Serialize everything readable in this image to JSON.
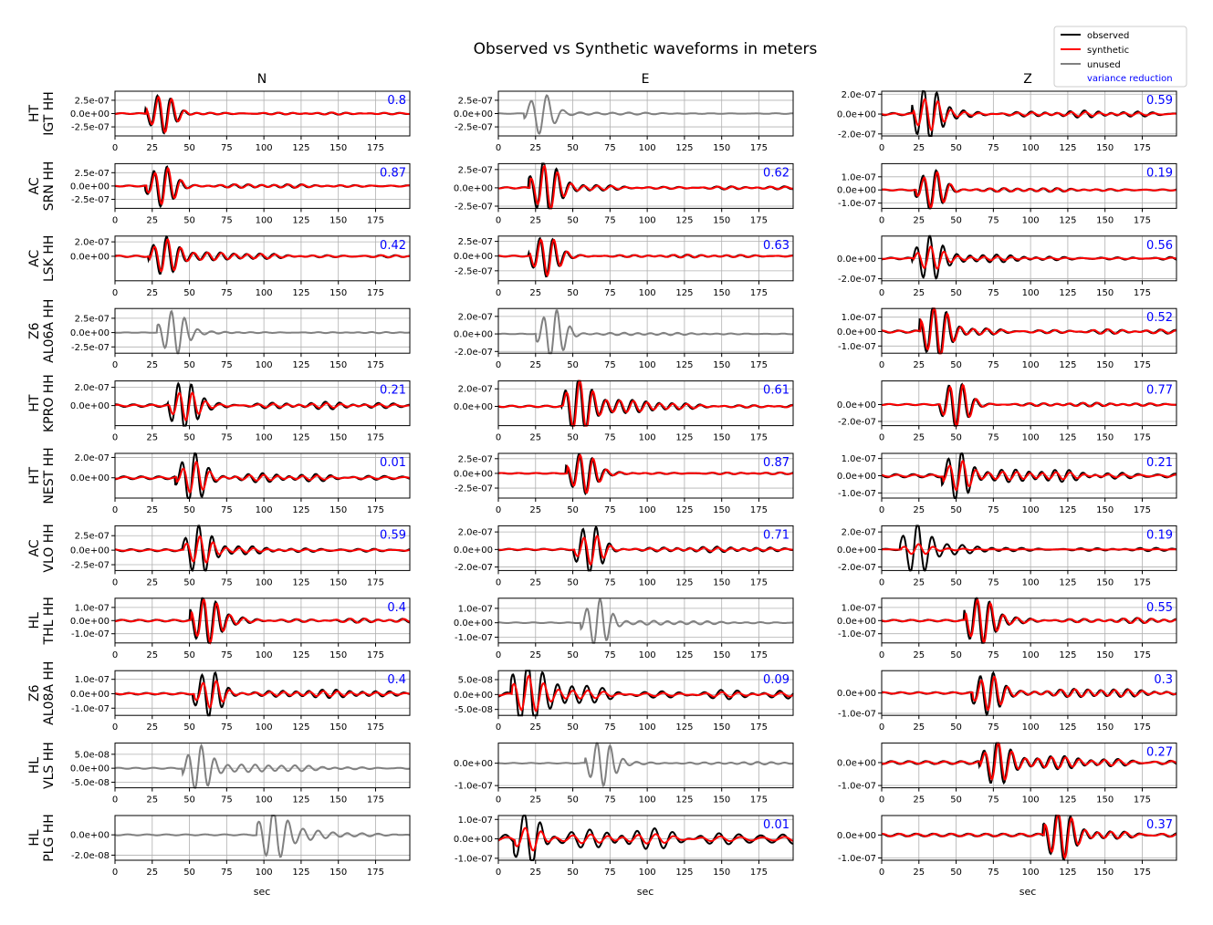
{
  "chart_data": {
    "type": "line",
    "title": "Observed vs Synthetic waveforms in meters",
    "columns": [
      "N",
      "E",
      "Z"
    ],
    "xlabel": "sec",
    "xlim": [
      0,
      198
    ],
    "xticks": [
      0,
      25,
      50,
      75,
      100,
      125,
      150,
      175
    ],
    "grid": true,
    "legend": {
      "placement": "top-right",
      "entries": [
        "observed",
        "synthetic",
        "unused",
        "variance reduction"
      ]
    },
    "colors": {
      "observed": "#000000",
      "synthetic": "#ff0000",
      "unused": "#808080",
      "variance_reduction": "#0000ff"
    },
    "stations": [
      {
        "network": "HT",
        "name": "IGT HH"
      },
      {
        "network": "AC",
        "name": "SRN HH"
      },
      {
        "network": "AC",
        "name": "LSK HH"
      },
      {
        "network": "Z6",
        "name": "AL06A HH"
      },
      {
        "network": "HT",
        "name": "KPRO HH"
      },
      {
        "network": "HT",
        "name": "NEST HH"
      },
      {
        "network": "AC",
        "name": "VLO HH"
      },
      {
        "network": "HL",
        "name": "THL HH"
      },
      {
        "network": "Z6",
        "name": "AL08A HH"
      },
      {
        "network": "HL",
        "name": "VLS HH"
      },
      {
        "network": "HL",
        "name": "PLG HH"
      }
    ],
    "panels": [
      [
        {
          "row": 0,
          "col": "N",
          "used": true,
          "vr": "0.8",
          "ylim": [
            -4.2e-07,
            4.2e-07
          ],
          "yticks": [
            2.5e-07,
            0,
            -2.5e-07
          ],
          "ytick_labels": [
            "2.5e-07",
            "0.0e+00",
            "-2.5e-07"
          ],
          "onset": 20,
          "peak": 3.3e-07,
          "syn_ratio": 0.95,
          "period": 9,
          "noise": 0.05,
          "coda": 0.15
        },
        {
          "row": 0,
          "col": "E",
          "used": false,
          "vr": "",
          "ylim": [
            -4.2e-07,
            4.2e-07
          ],
          "yticks": [
            2.5e-07,
            0,
            -2.5e-07
          ],
          "ytick_labels": [
            "2.5e-07",
            "0.0e+00",
            "-2.5e-07"
          ],
          "onset": 17,
          "peak": 3.8e-07,
          "syn_ratio": 0,
          "period": 11,
          "noise": 0.02,
          "coda": 0.1
        },
        {
          "row": 0,
          "col": "Z",
          "used": true,
          "vr": "0.59",
          "ylim": [
            -2.2e-07,
            2.3e-07
          ],
          "yticks": [
            2e-07,
            0,
            -2e-07
          ],
          "ytick_labels": [
            "2.0e-07",
            "0.0e+00",
            "-2.0e-07"
          ],
          "onset": 20,
          "peak": 2.2e-07,
          "syn_ratio": 0.6,
          "period": 9,
          "noise": 0.1,
          "coda": 0.45
        }
      ],
      [
        {
          "row": 1,
          "col": "N",
          "used": true,
          "vr": "0.87",
          "ylim": [
            -4.2e-07,
            4.2e-07
          ],
          "yticks": [
            2.5e-07,
            0,
            -2.5e-07
          ],
          "ytick_labels": [
            "2.5e-07",
            "0.0e+00",
            "-2.5e-07"
          ],
          "onset": 20,
          "peak": 3.8e-07,
          "syn_ratio": 0.9,
          "period": 9,
          "noise": 0.05,
          "coda": 0.2
        },
        {
          "row": 1,
          "col": "E",
          "used": true,
          "vr": "0.62",
          "ylim": [
            -2.8e-07,
            3.3e-07
          ],
          "yticks": [
            2.5e-07,
            0,
            -2.5e-07
          ],
          "ytick_labels": [
            "2.5e-07",
            "0.0e+00",
            "-2.5e-07"
          ],
          "onset": 20,
          "peak": 3.1e-07,
          "syn_ratio": 0.8,
          "period": 9,
          "noise": 0.06,
          "coda": 0.25
        },
        {
          "row": 1,
          "col": "Z",
          "used": true,
          "vr": "0.19",
          "ylim": [
            -1.4e-07,
            2e-07
          ],
          "yticks": [
            1e-07,
            0,
            -1e-07
          ],
          "ytick_labels": [
            "1.0e-07",
            "0.0e+00",
            "-1.0e-07"
          ],
          "onset": 22,
          "peak": 1.5e-07,
          "syn_ratio": 0.9,
          "period": 9,
          "noise": 0.05,
          "coda": 0.2
        }
      ],
      [
        {
          "row": 2,
          "col": "N",
          "used": true,
          "vr": "0.42",
          "ylim": [
            -3.4e-07,
            2.8e-07
          ],
          "yticks": [
            2e-07,
            0
          ],
          "ytick_labels": [
            "2.0e-07",
            "0.0e+00"
          ],
          "onset": 22,
          "peak": 2.4e-07,
          "syn_ratio": 0.85,
          "period": 9,
          "noise": 0.08,
          "coda": 0.35
        },
        {
          "row": 2,
          "col": "E",
          "used": true,
          "vr": "0.63",
          "ylim": [
            -4.2e-07,
            3.4e-07
          ],
          "yticks": [
            2.5e-07,
            0,
            -2.5e-07
          ],
          "ytick_labels": [
            "2.5e-07",
            "0.0e+00",
            "-2.5e-07"
          ],
          "onset": 20,
          "peak": 3.2e-07,
          "syn_ratio": 0.95,
          "period": 9,
          "noise": 0.05,
          "coda": 0.2
        },
        {
          "row": 2,
          "col": "Z",
          "used": true,
          "vr": "0.56",
          "ylim": [
            -2.2e-07,
            2.2e-07
          ],
          "yticks": [
            0,
            -2e-07
          ],
          "ytick_labels": [
            "0.0e+00",
            "-2.0e-07"
          ],
          "onset": 20,
          "peak": 2e-07,
          "syn_ratio": 0.5,
          "period": 9,
          "noise": 0.08,
          "coda": 0.3
        }
      ],
      [
        {
          "row": 3,
          "col": "N",
          "used": false,
          "vr": "",
          "ylim": [
            -3.6e-07,
            4.2e-07
          ],
          "yticks": [
            2.5e-07,
            0,
            -2.5e-07
          ],
          "ytick_labels": [
            "2.5e-07",
            "0.0e+00",
            "-2.5e-07"
          ],
          "onset": 28,
          "peak": 3.6e-07,
          "syn_ratio": 0,
          "period": 9,
          "noise": 0.02,
          "coda": 0.1
        },
        {
          "row": 3,
          "col": "E",
          "used": false,
          "vr": "",
          "ylim": [
            -2.2e-07,
            2.9e-07
          ],
          "yticks": [
            2e-07,
            0,
            -2e-07
          ],
          "ytick_labels": [
            "2.0e-07",
            "0.0e+00",
            "-2.0e-07"
          ],
          "onset": 25,
          "peak": 2.8e-07,
          "syn_ratio": 0,
          "period": 9,
          "noise": 0.02,
          "coda": 0.1
        },
        {
          "row": 3,
          "col": "Z",
          "used": true,
          "vr": "0.52",
          "ylim": [
            -1.5e-07,
            1.6e-07
          ],
          "yticks": [
            1e-07,
            0,
            -1e-07
          ],
          "ytick_labels": [
            "1.0e-07",
            "0.0e+00",
            "-1.0e-07"
          ],
          "onset": 25,
          "peak": 1.5e-07,
          "syn_ratio": 0.9,
          "period": 9,
          "noise": 0.1,
          "coda": 0.3
        }
      ],
      [
        {
          "row": 4,
          "col": "N",
          "used": true,
          "vr": "0.21",
          "ylim": [
            -2.2e-07,
            2.7e-07
          ],
          "yticks": [
            2e-07,
            0
          ],
          "ytick_labels": [
            "2.0e-07",
            "0.0e+00"
          ],
          "onset": 35,
          "peak": 2.4e-07,
          "syn_ratio": 0.6,
          "period": 9,
          "noise": 0.12,
          "coda": 0.4
        },
        {
          "row": 4,
          "col": "E",
          "used": true,
          "vr": "0.61",
          "ylim": [
            -2.2e-07,
            2.9e-07
          ],
          "yticks": [
            2e-07,
            0
          ],
          "ytick_labels": [
            "2.0e-07",
            "0.0e+00"
          ],
          "onset": 42,
          "peak": 2.8e-07,
          "syn_ratio": 0.85,
          "period": 9,
          "noise": 0.06,
          "coda": 0.4
        },
        {
          "row": 4,
          "col": "Z",
          "used": true,
          "vr": "0.77",
          "ylim": [
            -2.5e-07,
            2.8e-07
          ],
          "yticks": [
            0,
            -2e-07
          ],
          "ytick_labels": [
            "0.0e+00",
            "-2.0e-07"
          ],
          "onset": 38,
          "peak": 2.6e-07,
          "syn_ratio": 0.95,
          "period": 9,
          "noise": 0.05,
          "coda": 0.2
        }
      ],
      [
        {
          "row": 5,
          "col": "N",
          "used": true,
          "vr": "0.01",
          "ylim": [
            -2e-07,
            2.4e-07
          ],
          "yticks": [
            2e-07,
            0
          ],
          "ytick_labels": [
            "2.0e-07",
            "0.0e+00"
          ],
          "onset": 40,
          "peak": 2.4e-07,
          "syn_ratio": 0.6,
          "period": 9,
          "noise": 0.12,
          "coda": 0.3
        },
        {
          "row": 5,
          "col": "E",
          "used": true,
          "vr": "0.87",
          "ylim": [
            -4.2e-07,
            3.4e-07
          ],
          "yticks": [
            2.5e-07,
            0,
            -2.5e-07
          ],
          "ytick_labels": [
            "2.5e-07",
            "0.0e+00",
            "-2.5e-07"
          ],
          "onset": 45,
          "peak": 3.2e-07,
          "syn_ratio": 0.95,
          "period": 9,
          "noise": 0.04,
          "coda": 0.15
        },
        {
          "row": 5,
          "col": "Z",
          "used": true,
          "vr": "0.21",
          "ylim": [
            -1.3e-07,
            1.3e-07
          ],
          "yticks": [
            1e-07,
            0,
            -1e-07
          ],
          "ytick_labels": [
            "1.0e-07",
            "0.0e+00",
            "-1.0e-07"
          ],
          "onset": 40,
          "peak": 1.3e-07,
          "syn_ratio": 0.6,
          "period": 9,
          "noise": 0.15,
          "coda": 0.5
        }
      ],
      [
        {
          "row": 6,
          "col": "N",
          "used": true,
          "vr": "0.59",
          "ylim": [
            -3.5e-07,
            4.2e-07
          ],
          "yticks": [
            2.5e-07,
            0,
            -2.5e-07
          ],
          "ytick_labels": [
            "2.5e-07",
            "0.0e+00",
            "-2.5e-07"
          ],
          "onset": 45,
          "peak": 3.6e-07,
          "syn_ratio": 0.55,
          "period": 9,
          "noise": 0.1,
          "coda": 0.25
        },
        {
          "row": 6,
          "col": "E",
          "used": true,
          "vr": "0.71",
          "ylim": [
            -2.4e-07,
            2.7e-07
          ],
          "yticks": [
            2e-07,
            0,
            -2e-07
          ],
          "ytick_labels": [
            "2.0e-07",
            "0.0e+00",
            "-2.0e-07"
          ],
          "onset": 50,
          "peak": 2.6e-07,
          "syn_ratio": 0.6,
          "period": 9,
          "noise": 0.06,
          "coda": 0.3
        },
        {
          "row": 6,
          "col": "Z",
          "used": true,
          "vr": "0.19",
          "ylim": [
            -2.4e-07,
            2.7e-07
          ],
          "yticks": [
            2e-07,
            0,
            -2e-07
          ],
          "ytick_labels": [
            "2.0e-07",
            "0.0e+00",
            "-2.0e-07"
          ],
          "onset": 12,
          "peak": 2.5e-07,
          "syn_ratio": 0.2,
          "period": 10,
          "noise": 0.06,
          "coda": 0.3
        }
      ],
      [
        {
          "row": 7,
          "col": "N",
          "used": true,
          "vr": "0.4",
          "ylim": [
            -1.7e-07,
            1.7e-07
          ],
          "yticks": [
            1e-07,
            0,
            -1e-07
          ],
          "ytick_labels": [
            "1.0e-07",
            "0.0e+00",
            "-1.0e-07"
          ],
          "onset": 50,
          "peak": 1.6e-07,
          "syn_ratio": 0.9,
          "period": 9,
          "noise": 0.08,
          "coda": 0.3
        },
        {
          "row": 7,
          "col": "E",
          "used": false,
          "vr": "",
          "ylim": [
            -1.4e-07,
            1.7e-07
          ],
          "yticks": [
            1e-07,
            0,
            -1e-07
          ],
          "ytick_labels": [
            "1.0e-07",
            "0.0e+00",
            "-1.0e-07"
          ],
          "onset": 55,
          "peak": 1.6e-07,
          "syn_ratio": 0,
          "period": 9,
          "noise": 0.03,
          "coda": 0.15
        },
        {
          "row": 7,
          "col": "Z",
          "used": true,
          "vr": "0.55",
          "ylim": [
            -1.7e-07,
            1.7e-07
          ],
          "yticks": [
            1e-07,
            0,
            -1e-07
          ],
          "ytick_labels": [
            "1.0e-07",
            "0.0e+00",
            "-1.0e-07"
          ],
          "onset": 55,
          "peak": 1.5e-07,
          "syn_ratio": 0.9,
          "period": 9,
          "noise": 0.08,
          "coda": 0.4
        }
      ],
      [
        {
          "row": 8,
          "col": "N",
          "used": true,
          "vr": "0.4",
          "ylim": [
            -1.5e-07,
            1.6e-07
          ],
          "yticks": [
            1e-07,
            0,
            -1e-07
          ],
          "ytick_labels": [
            "1.0e-07",
            "0.0e+00",
            "-1.0e-07"
          ],
          "onset": 52,
          "peak": 1.4e-07,
          "syn_ratio": 0.6,
          "period": 9,
          "noise": 0.08,
          "coda": 0.5
        },
        {
          "row": 8,
          "col": "E",
          "used": true,
          "vr": "0.09",
          "ylim": [
            -7e-08,
            8e-08
          ],
          "yticks": [
            5e-08,
            0,
            -5e-08
          ],
          "ytick_labels": [
            "5.0e-08",
            "0.0e+00",
            "-5.0e-08"
          ],
          "onset": 8,
          "peak": 7e-08,
          "syn_ratio": 0.5,
          "period": 10,
          "noise": 0.2,
          "coda": 0.8
        },
        {
          "row": 8,
          "col": "Z",
          "used": true,
          "vr": "0.3",
          "ylim": [
            -1.1e-07,
            1.1e-07
          ],
          "yticks": [
            0,
            -1e-07
          ],
          "ytick_labels": [
            "0.0e+00",
            "-1.0e-07"
          ],
          "onset": 60,
          "peak": 1e-07,
          "syn_ratio": 0.8,
          "period": 9,
          "noise": 0.08,
          "coda": 0.5
        }
      ],
      [
        {
          "row": 9,
          "col": "N",
          "used": false,
          "vr": "",
          "ylim": [
            -7e-08,
            9e-08
          ],
          "yticks": [
            5e-08,
            0,
            -5e-08
          ],
          "ytick_labels": [
            "5.0e-08",
            "0.0e+00",
            "-5.0e-08"
          ],
          "onset": 45,
          "peak": 7.5e-08,
          "syn_ratio": 0,
          "period": 9,
          "noise": 0.05,
          "coda": 0.3
        },
        {
          "row": 9,
          "col": "E",
          "used": false,
          "vr": "",
          "ylim": [
            -1.1e-07,
            9e-08
          ],
          "yticks": [
            0,
            -1e-07
          ],
          "ytick_labels": [
            "0.0e+00",
            "-1.0e-07"
          ],
          "onset": 58,
          "peak": 9e-08,
          "syn_ratio": 0,
          "period": 9,
          "noise": 0.03,
          "coda": 0.2
        },
        {
          "row": 9,
          "col": "Z",
          "used": true,
          "vr": "0.27",
          "ylim": [
            -1.1e-07,
            8.5e-08
          ],
          "yticks": [
            0,
            -1e-07
          ],
          "ytick_labels": [
            "0.0e+00",
            "-1.0e-07"
          ],
          "onset": 65,
          "peak": 8.5e-08,
          "syn_ratio": 0.8,
          "period": 9,
          "noise": 0.15,
          "coda": 0.5
        }
      ],
      [
        {
          "row": 10,
          "col": "N",
          "used": false,
          "vr": "",
          "ylim": [
            -2.5e-08,
            1.9e-08
          ],
          "yticks": [
            0,
            -2e-08
          ],
          "ytick_labels": [
            "0.0e+00",
            "-2.0e-08"
          ],
          "onset": 95,
          "peak": 1.9e-08,
          "syn_ratio": 0,
          "period": 10,
          "noise": 0.05,
          "coda": 0.4
        },
        {
          "row": 10,
          "col": "E",
          "used": true,
          "vr": "0.01",
          "ylim": [
            -1.1e-07,
            1.2e-07
          ],
          "yticks": [
            1e-07,
            0,
            -1e-07
          ],
          "ytick_labels": [
            "1.0e-07",
            "0.0e+00",
            "-1.0e-07"
          ],
          "onset": 10,
          "peak": 1.2e-07,
          "syn_ratio": 0.45,
          "period": 11,
          "noise": 0.35,
          "coda": 0.8
        },
        {
          "row": 10,
          "col": "Z",
          "used": true,
          "vr": "0.37",
          "ylim": [
            -1.1e-07,
            8.5e-08
          ],
          "yticks": [
            0,
            -1e-07
          ],
          "ytick_labels": [
            "0.0e+00",
            "-1.0e-07"
          ],
          "onset": 108,
          "peak": 8e-08,
          "syn_ratio": 0.9,
          "period": 9,
          "noise": 0.15,
          "coda": 0.4
        }
      ]
    ]
  }
}
